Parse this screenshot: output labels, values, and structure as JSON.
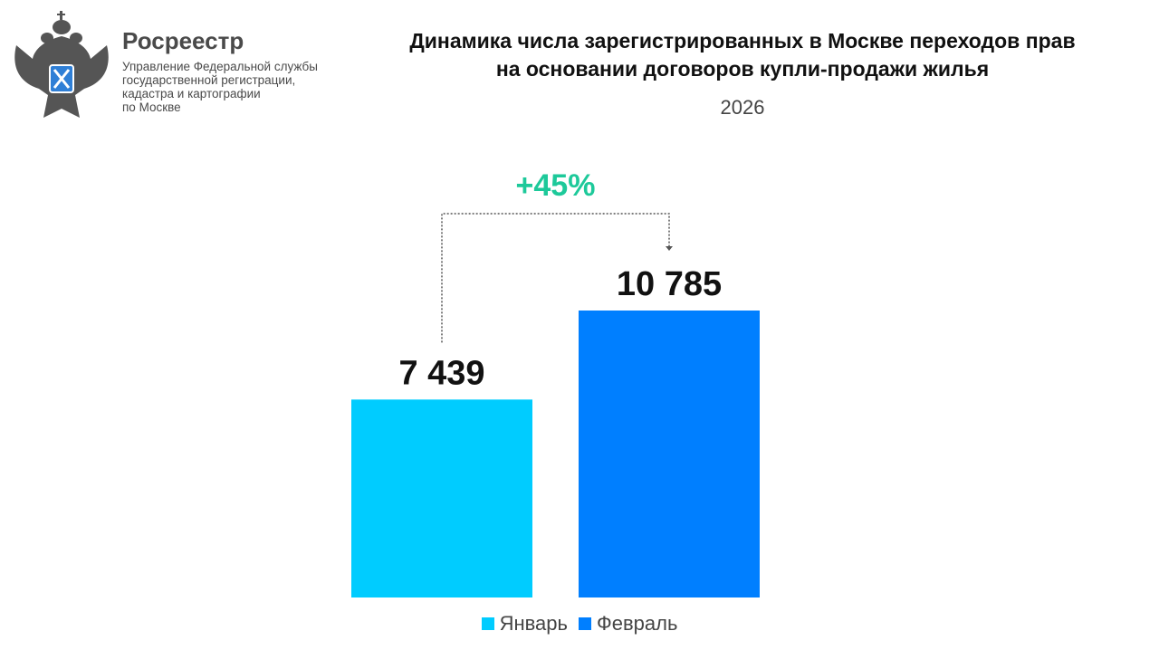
{
  "header": {
    "brand": "Росреестр",
    "subtitle_lines": [
      "Управление Федеральной службы",
      "государственной регистрации,",
      "кадастра и картографии",
      "по Москве"
    ]
  },
  "chart_data": {
    "type": "bar",
    "title": "Динамика числа зарегистрированных в Москве переходов прав на основании договоров купли-продажи жилья",
    "title_lines": [
      "Динамика числа зарегистрированных в Москве переходов прав",
      "на основании договоров купли-продажи жилья"
    ],
    "subtitle": "2026",
    "categories": [
      "Январь",
      "Февраль"
    ],
    "values": [
      7439,
      10785
    ],
    "data_labels": [
      "7 439",
      "10 785"
    ],
    "colors": [
      "#00CCFF",
      "#007FFF"
    ],
    "annotation": {
      "text": "+45%",
      "color": "#1DC99A",
      "from": "Январь",
      "to": "Февраль"
    },
    "legend": {
      "position": "bottom",
      "entries": [
        "Январь",
        "Февраль"
      ]
    },
    "grid": false,
    "axes_visible": false
  }
}
